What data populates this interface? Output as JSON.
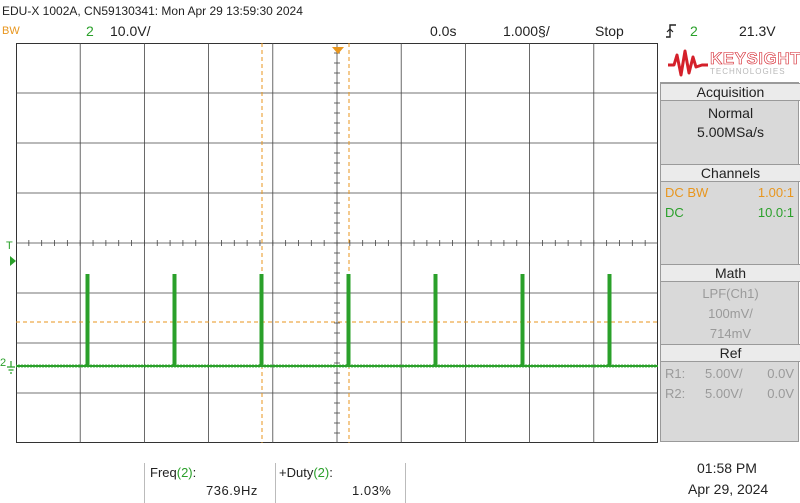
{
  "header": {
    "title": "EDU-X 1002A, CN59130341: Mon Apr 29 13:59:30 2024"
  },
  "topbar": {
    "bw_label": "BW",
    "channel_num": "2",
    "volts_per_div": "10.0V/",
    "time_offset": "0.0s",
    "time_per_div": "1.000§/",
    "run_state": "Stop",
    "trigger_icon": "edge-trigger-icon",
    "trigger_channel": "2",
    "trigger_level": "21.3V"
  },
  "brand": {
    "name": "KEYSIGHT",
    "sub": "TECHNOLOGIES",
    "color": "#d4202a"
  },
  "acquisition": {
    "title": "Acquisition",
    "mode": "Normal",
    "rate": "5.00MSa/s"
  },
  "channels": {
    "title": "Channels",
    "rows": [
      {
        "left": "DC BW",
        "right": "1.00:1",
        "color": "#e8961e"
      },
      {
        "left": "DC",
        "right": "10.0:1",
        "color": "#2aa02a"
      }
    ]
  },
  "math": {
    "title": "Math",
    "function": "LPF(Ch1)",
    "scale": "100mV/",
    "offset": "714mV"
  },
  "ref": {
    "title": "Ref",
    "rows": [
      {
        "left": "R1:",
        "scale": "5.00V/",
        "offset": "0.0V"
      },
      {
        "left": "R2:",
        "scale": "5.00V/",
        "offset": "0.0V"
      }
    ]
  },
  "markers": {
    "trigger_marker": "T",
    "ground_marker": "2"
  },
  "measurements": [
    {
      "label": "Freq",
      "channel": "(2)",
      "colon": ":",
      "value": "736.9Hz"
    },
    {
      "label": "+Duty",
      "channel": "(2)",
      "colon": ":",
      "value": "1.03%"
    }
  ],
  "clock": {
    "time": "01:58 PM",
    "date": "Apr 29, 2024"
  },
  "colors": {
    "ch1": "#e8961e",
    "ch2": "#2aa02a",
    "grid": "#444444"
  }
}
